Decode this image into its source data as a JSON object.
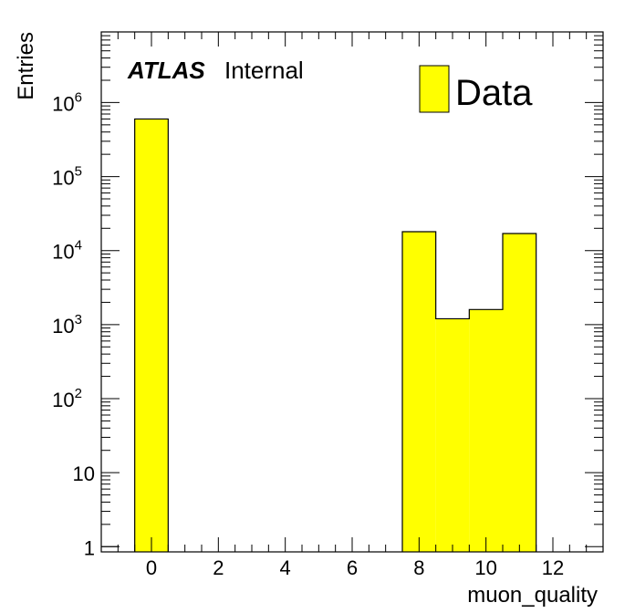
{
  "chart_data": {
    "type": "bar",
    "x_bins": [
      {
        "low": -0.5,
        "high": 0.5
      },
      {
        "low": 7.5,
        "high": 8.5
      },
      {
        "low": 8.5,
        "high": 9.5
      },
      {
        "low": 9.5,
        "high": 10.5
      },
      {
        "low": 10.5,
        "high": 11.5
      }
    ],
    "values": [
      600000,
      18000,
      1200,
      1600,
      17000
    ],
    "series": [
      {
        "name": "Data",
        "color": "#ffff00"
      }
    ],
    "xlabel": "muon_quality",
    "ylabel": "Entries",
    "xlim": [
      -1.5,
      13.5
    ],
    "ylim": [
      0.85,
      9000000
    ],
    "y_scale": "log",
    "x_ticks": [
      "0",
      "2",
      "4",
      "6",
      "8",
      "10",
      "12"
    ],
    "y_ticks": [
      {
        "value": 1,
        "base": "1",
        "exp": ""
      },
      {
        "value": 10,
        "base": "10",
        "exp": ""
      },
      {
        "value": 100,
        "base": "10",
        "exp": "2"
      },
      {
        "value": 1000,
        "base": "10",
        "exp": "3"
      },
      {
        "value": 10000,
        "base": "10",
        "exp": "4"
      },
      {
        "value": 100000,
        "base": "10",
        "exp": "5"
      },
      {
        "value": 1000000,
        "base": "10",
        "exp": "6"
      }
    ],
    "legend_placement": "top-right",
    "grid": false
  },
  "atlas_label": {
    "bold": "ATLAS",
    "text": "Internal"
  },
  "legend": {
    "label": "Data"
  }
}
